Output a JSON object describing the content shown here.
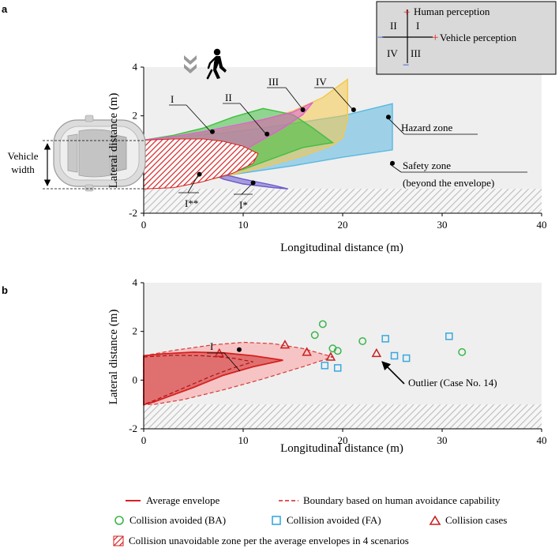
{
  "chart_data": [
    {
      "panel": "a",
      "type": "area",
      "xlabel": "Longitudinal distance (m)",
      "ylabel": "Lateral distance (m)",
      "xlim": [
        0,
        40
      ],
      "ylim": [
        -2,
        4
      ],
      "xticks": [
        "0",
        "10",
        "20",
        "30",
        "40"
      ],
      "yticks": [
        "-2",
        "0",
        "2",
        "4"
      ],
      "road_edge_y": -1,
      "series": [
        {
          "name": "IV",
          "color": "#5bb8e0",
          "points": [
            [
              0,
              1
            ],
            [
              1,
              1.05
            ],
            [
              4,
              1.15
            ],
            [
              8,
              1.3
            ],
            [
              12,
              1.5
            ],
            [
              16,
              1.75
            ],
            [
              20,
              2.0
            ],
            [
              25,
              2.5
            ],
            [
              25,
              0.6
            ],
            [
              20,
              0.3
            ],
            [
              15,
              -0.05
            ],
            [
              10,
              -0.35
            ],
            [
              5,
              -0.65
            ],
            [
              2,
              -0.85
            ],
            [
              0,
              -1
            ]
          ]
        },
        {
          "name": "III",
          "color": "#f5c84a",
          "points": [
            [
              0,
              1
            ],
            [
              3,
              1.1
            ],
            [
              7,
              1.35
            ],
            [
              11,
              1.7
            ],
            [
              15,
              2.2
            ],
            [
              18,
              2.75
            ],
            [
              20.5,
              3.5
            ],
            [
              20.5,
              1.9
            ],
            [
              20,
              1.1
            ],
            [
              19,
              0.8
            ],
            [
              16,
              0.35
            ],
            [
              12,
              -0.1
            ],
            [
              8,
              -0.5
            ],
            [
              4,
              -0.8
            ],
            [
              0,
              -1
            ]
          ]
        },
        {
          "name": "II",
          "color": "#3fbf3f",
          "points": [
            [
              0,
              1
            ],
            [
              3,
              1.2
            ],
            [
              6,
              1.5
            ],
            [
              9,
              1.95
            ],
            [
              12,
              2.3
            ],
            [
              15,
              2.05
            ],
            [
              17,
              1.5
            ],
            [
              19,
              0.9
            ],
            [
              16,
              0.7
            ],
            [
              13,
              0.25
            ],
            [
              10,
              -0.2
            ],
            [
              6,
              -0.55
            ],
            [
              3,
              -0.8
            ],
            [
              0,
              -1
            ]
          ]
        },
        {
          "name": "I*",
          "color": "#6a5acd",
          "points": [
            [
              0,
              1
            ],
            [
              2,
              0.9
            ],
            [
              4,
              0.4
            ],
            [
              6,
              -0.2
            ],
            [
              8,
              -0.6
            ],
            [
              10,
              -0.8
            ],
            [
              13,
              -0.95
            ],
            [
              14.5,
              -1.0
            ],
            [
              13,
              -0.85
            ],
            [
              10,
              -0.6
            ],
            [
              7,
              -0.3
            ],
            [
              4,
              0.1
            ],
            [
              2,
              0.5
            ],
            [
              0,
              1
            ]
          ]
        },
        {
          "name": "I",
          "color": "#e060d0",
          "points": [
            [
              0,
              1
            ],
            [
              3,
              1.15
            ],
            [
              6,
              1.35
            ],
            [
              9,
              1.6
            ],
            [
              12,
              1.85
            ],
            [
              15,
              2.15
            ],
            [
              17,
              2.55
            ],
            [
              16,
              2.05
            ],
            [
              14,
              1.5
            ],
            [
              11,
              0.8
            ],
            [
              8,
              0.1
            ],
            [
              5,
              -0.45
            ],
            [
              3,
              -0.75
            ],
            [
              0,
              -1
            ]
          ]
        }
      ],
      "unavoidable_zone": [
        [
          0,
          1
        ],
        [
          3,
          1.05
        ],
        [
          6,
          1.05
        ],
        [
          8,
          0.95
        ],
        [
          10,
          0.75
        ],
        [
          11.5,
          0.45
        ],
        [
          11,
          0.05
        ],
        [
          9,
          -0.35
        ],
        [
          6,
          -0.7
        ],
        [
          3,
          -0.95
        ],
        [
          0,
          -1
        ]
      ],
      "markers": [
        {
          "label": "I",
          "x": 6.9,
          "y": 1.35
        },
        {
          "label": "II",
          "x": 12.4,
          "y": 1.25
        },
        {
          "label": "III",
          "x": 16.0,
          "y": 2.25
        },
        {
          "label": "IV",
          "x": 21.1,
          "y": 2.25
        },
        {
          "label": "I**",
          "x": 5.6,
          "y": -0.4
        },
        {
          "label": "I*",
          "x": 11.0,
          "y": -0.75
        },
        {
          "label": "Hazard zone",
          "x": 24.6,
          "y": 1.95
        },
        {
          "label": "Safety zone",
          "x": 25.0,
          "y": 0.05
        }
      ],
      "annotations": {
        "hazard": "Hazard zone",
        "safety_line1": "Safety zone",
        "safety_line2": "(beyond the envelope)",
        "vehicle_width_line1": "Vehicle",
        "vehicle_width_line2": "width"
      },
      "quadrant_legend": {
        "plus": "+",
        "minus": "−",
        "human": "Human perception",
        "vehicle": "Vehicle perception",
        "q1": "I",
        "q2": "II",
        "q3": "III",
        "q4": "IV"
      }
    },
    {
      "panel": "b",
      "type": "scatter",
      "xlabel": "Longitudinal distance (m)",
      "ylabel": "Lateral distance (m)",
      "xlim": [
        0,
        40
      ],
      "ylim": [
        -2,
        4
      ],
      "xticks": [
        "0",
        "10",
        "20",
        "30",
        "40"
      ],
      "yticks": [
        "-2",
        "0",
        "2",
        "4"
      ],
      "road_edge_y": -1,
      "average_envelope": [
        [
          0,
          1
        ],
        [
          2,
          1.08
        ],
        [
          5,
          1.15
        ],
        [
          8,
          1.12
        ],
        [
          11,
          1.0
        ],
        [
          14,
          0.82
        ],
        [
          11,
          0.55
        ],
        [
          8,
          0.2
        ],
        [
          5,
          -0.3
        ],
        [
          3,
          -0.6
        ],
        [
          1,
          -0.9
        ],
        [
          0,
          -1
        ]
      ],
      "inner_dashed": [
        [
          0,
          0.95
        ],
        [
          3,
          1.02
        ],
        [
          6,
          1.0
        ],
        [
          9,
          0.9
        ],
        [
          11,
          0.75
        ],
        [
          9,
          0.5
        ],
        [
          7,
          0.2
        ],
        [
          5,
          -0.15
        ],
        [
          3,
          -0.5
        ],
        [
          1,
          -0.85
        ],
        [
          0,
          -1
        ]
      ],
      "human_boundary": [
        [
          0,
          1
        ],
        [
          3,
          1.22
        ],
        [
          7,
          1.45
        ],
        [
          10,
          1.55
        ],
        [
          13,
          1.5
        ],
        [
          16,
          1.3
        ],
        [
          19,
          0.95
        ],
        [
          16,
          0.55
        ],
        [
          12,
          0.05
        ],
        [
          8,
          -0.4
        ],
        [
          4,
          -0.8
        ],
        [
          1,
          -1
        ],
        [
          0,
          -1
        ]
      ],
      "collision_avoided_BA": [
        [
          17.2,
          1.85
        ],
        [
          18.0,
          2.3
        ],
        [
          19.0,
          1.3
        ],
        [
          19.5,
          1.2
        ],
        [
          22.0,
          1.6
        ],
        [
          32.0,
          1.15
        ]
      ],
      "collision_avoided_FA": [
        [
          18.2,
          0.6
        ],
        [
          19.5,
          0.5
        ],
        [
          24.3,
          1.7
        ],
        [
          25.2,
          1.0
        ],
        [
          26.4,
          0.9
        ],
        [
          30.7,
          1.8
        ]
      ],
      "collision_cases": [
        [
          7.6,
          1.1
        ],
        [
          14.2,
          1.45
        ],
        [
          16.4,
          1.15
        ],
        [
          18.8,
          0.95
        ],
        [
          23.4,
          1.1
        ]
      ],
      "marker_I": {
        "label": "I",
        "x": 9.6,
        "y": 1.25
      },
      "outlier": {
        "label": "Outlier (Case No. 14)",
        "x": 23.4,
        "y": 1.0
      }
    }
  ],
  "panel_labels": {
    "a": "a",
    "b": "b"
  },
  "legend": {
    "average_envelope": "Average envelope",
    "human_boundary": "Boundary based on human avoidance capability",
    "avoided_ba": "Collision avoided (BA)",
    "avoided_fa": "Collision avoided (FA)",
    "collision_cases": "Collision cases",
    "unavoidable": "Collision unavoidable zone per the average envelopes in 4 scenarios"
  },
  "colors": {
    "background": "#efefef",
    "hatch": "#cfcfcf",
    "envelope_red": "#d73a3a",
    "boundary_fill": "#f4b8b8",
    "ba_green": "#3cb44b",
    "fa_blue": "#38a8e0",
    "collision_red": "#c82020"
  }
}
